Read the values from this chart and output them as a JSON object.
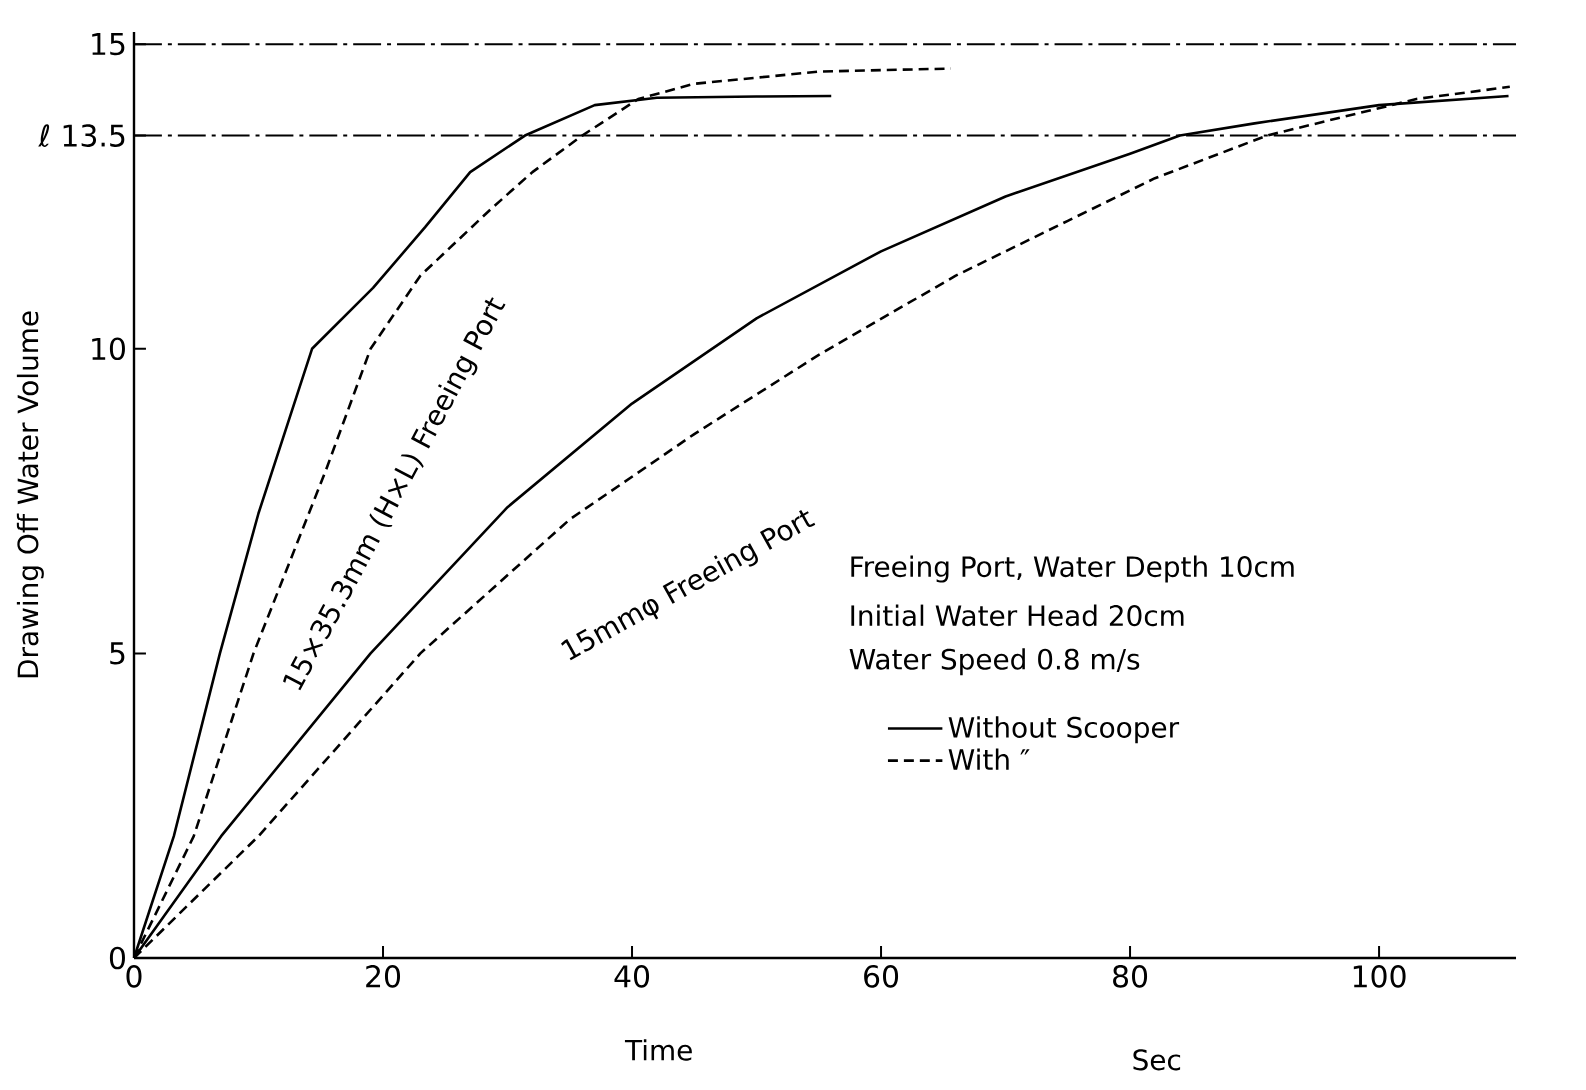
{
  "chart_data": {
    "type": "line",
    "xlabel": "Time",
    "ylabel": "Drawing Off Water Volume",
    "xlim": [
      0,
      111
    ],
    "ylim": [
      0,
      15.2
    ],
    "xticks": [
      0,
      20,
      40,
      60,
      80,
      100
    ],
    "yticks": [
      0,
      5,
      10,
      {
        "value": 13.5,
        "label": "ℓ 13.5"
      },
      15
    ],
    "legend": "right",
    "ref_lines": [
      {
        "axis": "y",
        "value": 15,
        "line_style": "dashdot",
        "color": "#000000"
      },
      {
        "axis": "y",
        "value": 13.5,
        "line_style": "dashdot",
        "color": "#000000"
      }
    ],
    "series": [
      {
        "name": "Without Scooper",
        "color": "#000000",
        "line_style": "solid",
        "x": [
          0,
          3.2,
          6.9,
          10,
          14.3,
          19.2,
          23.4,
          27,
          31.4,
          37,
          42,
          50,
          56
        ],
        "values": [
          0,
          2,
          5,
          7.3,
          10,
          11,
          12,
          12.9,
          13.5,
          14,
          14.12,
          14.14,
          14.15
        ]
      },
      {
        "name": "With ″",
        "color": "#000000",
        "line_style": "dashed",
        "x": [
          0,
          4.8,
          9.6,
          15.4,
          19,
          23,
          28.7,
          32,
          36,
          40.5,
          45,
          55,
          65.6
        ],
        "values": [
          0,
          2,
          5,
          8,
          10,
          11.2,
          12.3,
          12.9,
          13.5,
          14.1,
          14.35,
          14.55,
          14.6
        ]
      },
      {
        "color": "#000000",
        "line_style": "solid",
        "x": [
          0,
          7,
          19,
          30,
          40,
          50,
          60,
          70,
          80,
          84,
          90,
          100,
          110.4
        ],
        "values": [
          0,
          2,
          5,
          7.4,
          9.1,
          10.5,
          11.6,
          12.5,
          13.2,
          13.5,
          13.7,
          14,
          14.15
        ]
      },
      {
        "color": "#000000",
        "line_style": "dashed",
        "x": [
          0,
          10,
          23,
          35,
          45,
          55,
          66,
          75,
          82,
          91,
          103,
          110.5
        ],
        "values": [
          0,
          2,
          5,
          7.2,
          8.6,
          9.9,
          11.2,
          12.1,
          12.8,
          13.5,
          14.1,
          14.3
        ]
      }
    ],
    "annotations": [
      "15×35.3mm (H×L) Freeing Port",
      "15mmφ Freeing Port",
      "Freeing Port, Water Depth 10cm",
      "Initial Water Head 20cm",
      "Water Speed 0.8 m/s",
      "Sec"
    ]
  }
}
